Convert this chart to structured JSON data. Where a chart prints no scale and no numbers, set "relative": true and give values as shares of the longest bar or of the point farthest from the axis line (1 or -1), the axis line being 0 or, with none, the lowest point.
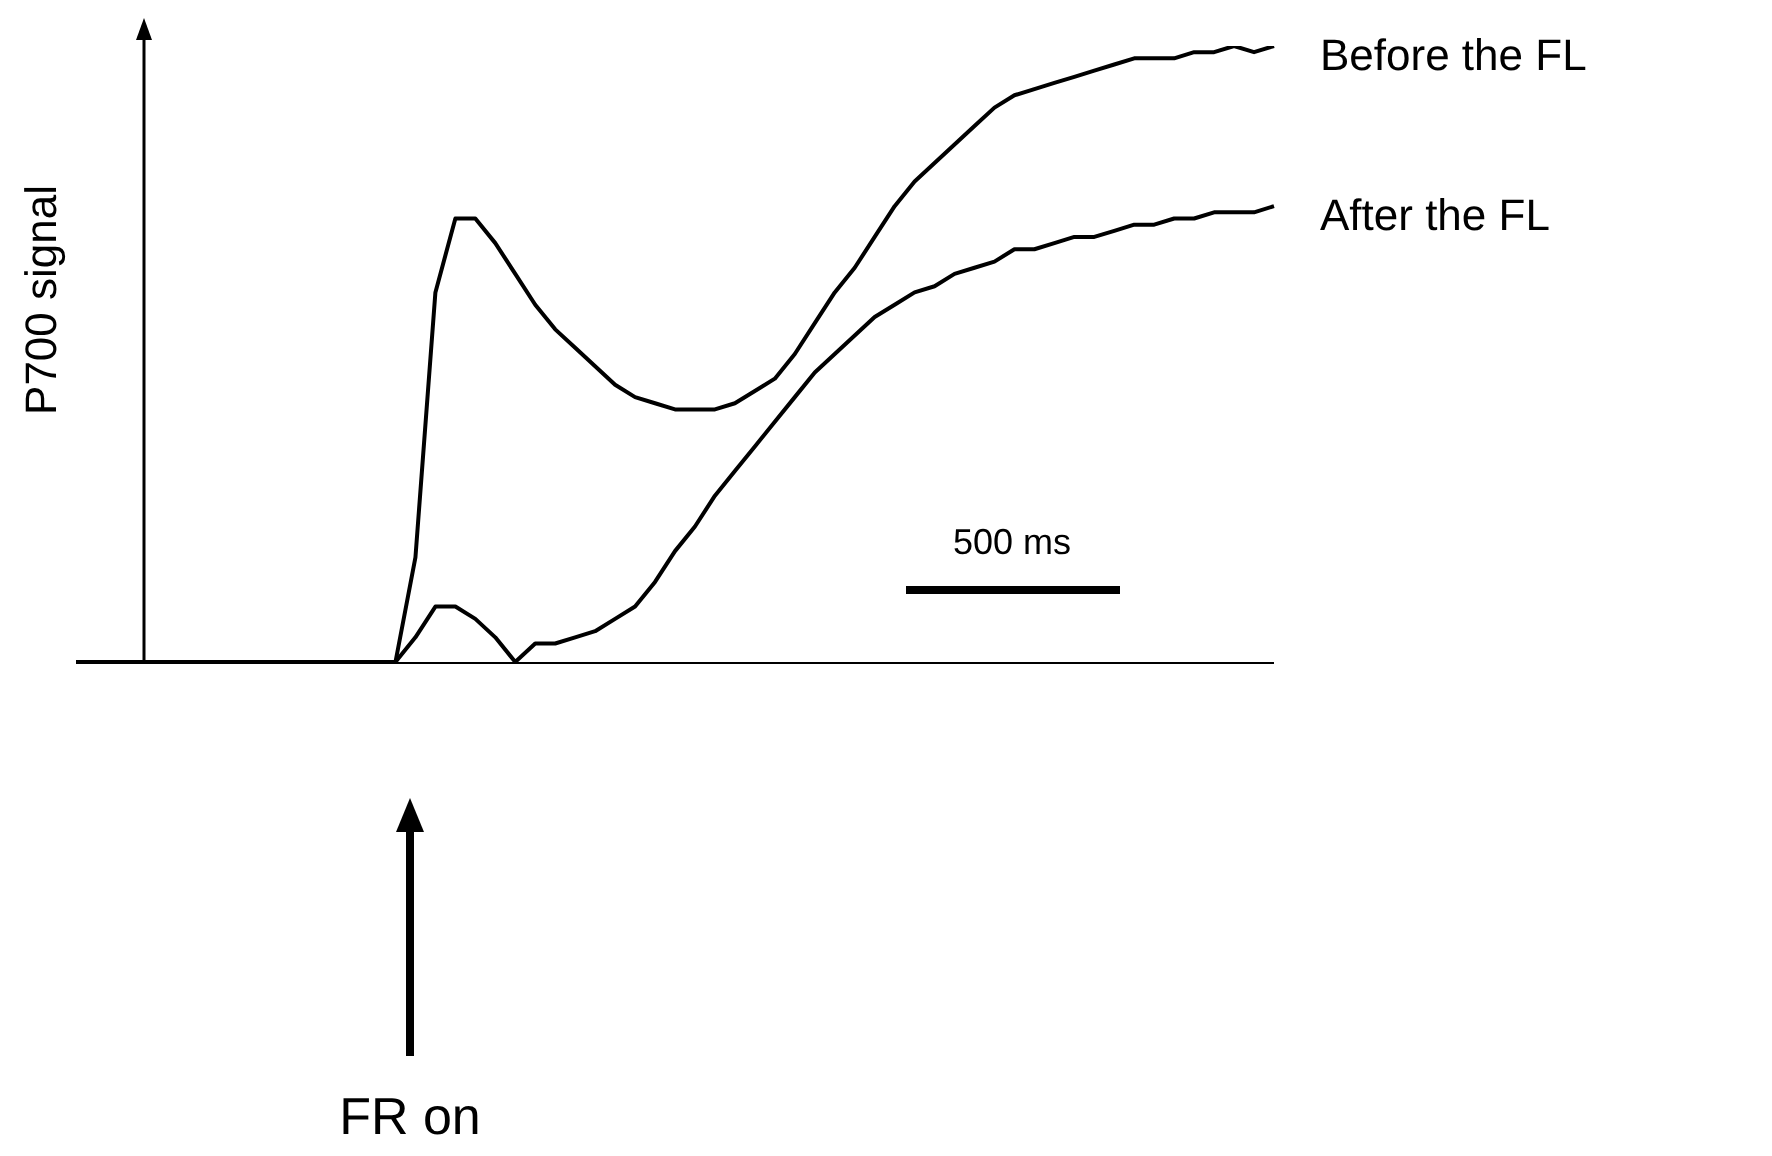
{
  "chart_data": {
    "type": "line",
    "relative": true,
    "ylabel": "P700 signal",
    "annotations": [
      "500 ms",
      "FR on"
    ],
    "legend": false,
    "marker": "none",
    "line_style": "solid",
    "categories": [
      null,
      null,
      null,
      null,
      null,
      null,
      null,
      null,
      null,
      null,
      null,
      null,
      null,
      null,
      null,
      null,
      null,
      null,
      null,
      null,
      null,
      null,
      null,
      null,
      null,
      null,
      null,
      null,
      null,
      null,
      null,
      null,
      null,
      null,
      null,
      null,
      null,
      null,
      null,
      null,
      null,
      null,
      null,
      null,
      null,
      null,
      null,
      null,
      null,
      null,
      null,
      null,
      null,
      null,
      null,
      null,
      null,
      null,
      null,
      null,
      null
    ],
    "series": [
      {
        "name": "Before the FL",
        "color": "#000000",
        "values": [
          0,
          0,
          0,
          0,
          0,
          0,
          0,
          0,
          0,
          0,
          0,
          0,
          0,
          0,
          0,
          0,
          0,
          0.17,
          0.6,
          0.72,
          0.72,
          0.68,
          0.63,
          0.58,
          0.54,
          0.51,
          0.48,
          0.45,
          0.43,
          0.42,
          0.41,
          0.41,
          0.41,
          0.42,
          0.44,
          0.46,
          0.5,
          0.55,
          0.6,
          0.64,
          0.69,
          0.74,
          0.78,
          0.81,
          0.84,
          0.87,
          0.9,
          0.92,
          0.93,
          0.94,
          0.95,
          0.96,
          0.97,
          0.98,
          0.98,
          0.98,
          0.99,
          0.99,
          1,
          0.99,
          1
        ]
      },
      {
        "name": "After the FL",
        "color": "#000000",
        "values": [
          0,
          0,
          0,
          0,
          0,
          0,
          0,
          0,
          0,
          0,
          0,
          0,
          0,
          0,
          0,
          0,
          0,
          0.04,
          0.09,
          0.09,
          0.07,
          0.04,
          0,
          0.03,
          0.03,
          0.04,
          0.05,
          0.07,
          0.09,
          0.13,
          0.18,
          0.22,
          0.27,
          0.31,
          0.35,
          0.39,
          0.43,
          0.47,
          0.5,
          0.53,
          0.56,
          0.58,
          0.6,
          0.61,
          0.63,
          0.64,
          0.65,
          0.67,
          0.67,
          0.68,
          0.69,
          0.69,
          0.7,
          0.71,
          0.71,
          0.72,
          0.72,
          0.73,
          0.73,
          0.73,
          0.74
        ]
      }
    ]
  }
}
